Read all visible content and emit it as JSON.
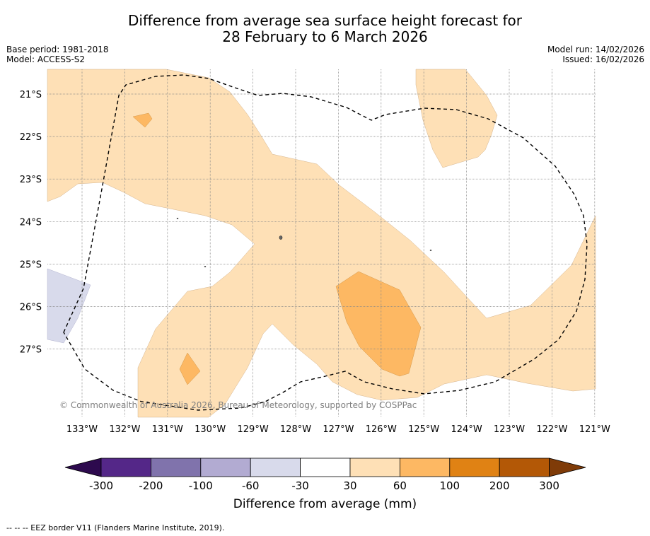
{
  "title": {
    "line1": "Difference from average sea surface height forecast for",
    "line2": "28 February to 6 March 2026"
  },
  "meta_left": {
    "base_period": "Base period: 1981-2018",
    "model": "Model: ACCESS-S2"
  },
  "meta_right": {
    "model_run": "Model run: 14/02/2026",
    "issued": "Issued: 16/02/2026"
  },
  "lat_labels": [
    "21°S",
    "22°S",
    "23°S",
    "24°S",
    "25°S",
    "26°S",
    "27°S"
  ],
  "lon_labels": [
    "133°W",
    "132°W",
    "131°W",
    "130°W",
    "129°W",
    "128°W",
    "127°W",
    "126°W",
    "125°W",
    "124°W",
    "123°W",
    "122°W",
    "121°W"
  ],
  "copyright": "© Commonwealth of Australia 2026, Bureau of Meteorology, supported by COSPPac",
  "colorbar": {
    "labels": [
      "-300",
      "-200",
      "-100",
      "-60",
      "-30",
      "30",
      "60",
      "100",
      "200",
      "300"
    ],
    "colors": {
      "below_min": "#2d0a4e",
      "bins": [
        "#542788",
        "#8073ac",
        "#b2abd2",
        "#d8daeb",
        "#ffffff",
        "#fee0b6",
        "#fdb863",
        "#e08214",
        "#b35806"
      ],
      "above_max": "#7f3b08"
    },
    "title": "Difference from average (mm)"
  },
  "footnote": "--  --  -- EEZ border V11 (Flanders Marine Institute, 2019)."
}
